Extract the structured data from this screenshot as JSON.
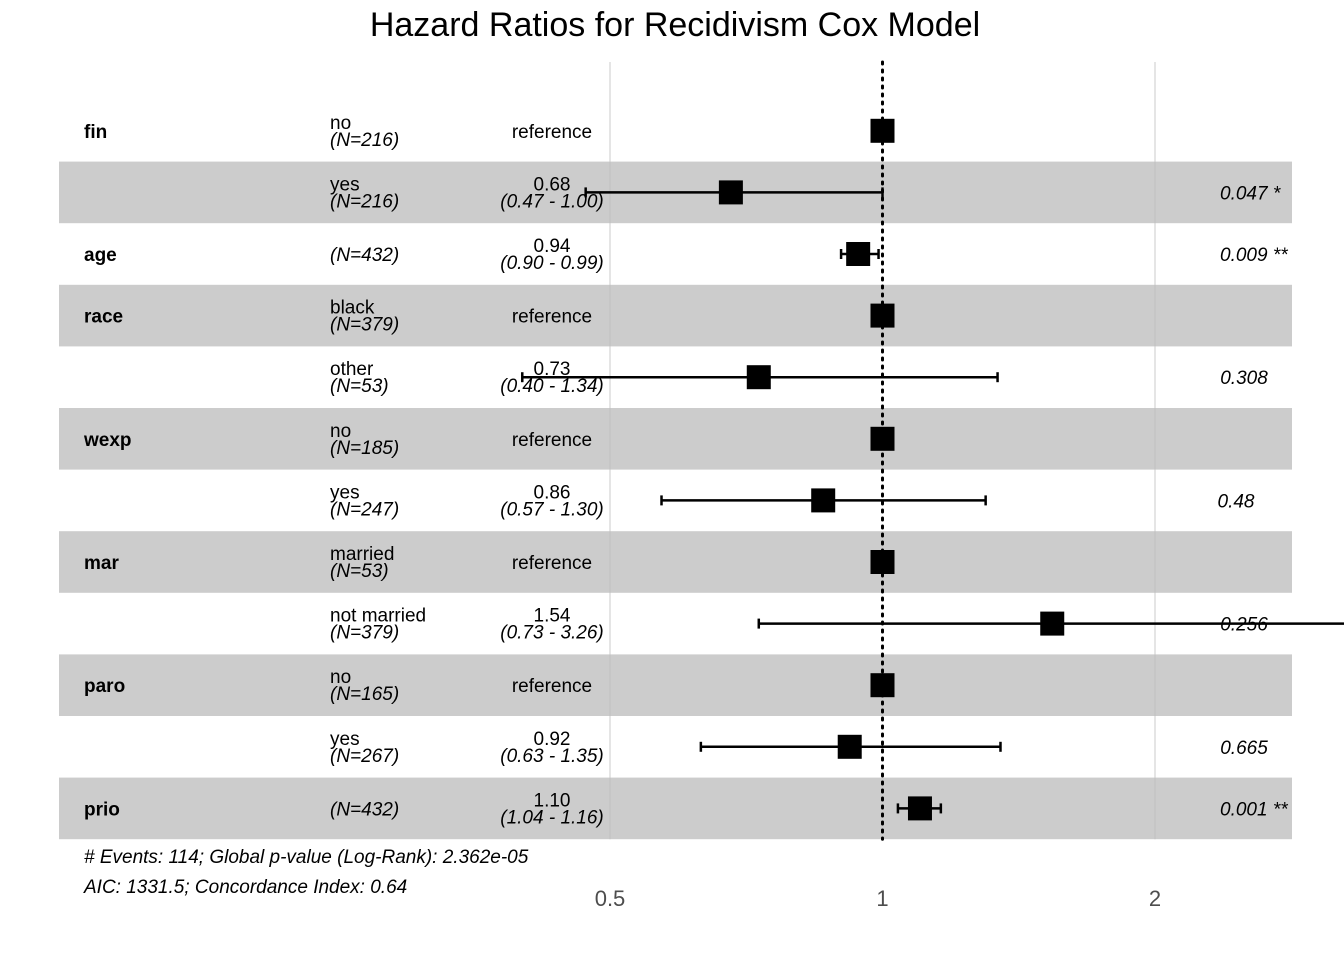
{
  "title": "Hazard Ratios for Recidivism Cox Model",
  "chart_data": {
    "type": "forest",
    "title": "Hazard Ratios for Recidivism Cox Model",
    "x_scale": "log",
    "x_ticks": [
      0.5,
      1,
      2
    ],
    "x_tick_labels": [
      "0.5",
      "1",
      "2"
    ],
    "reference_line": 1,
    "rows": [
      {
        "variable": "fin",
        "level": "no",
        "n": "(N=216)",
        "estimate_text": "reference",
        "ci_text": "",
        "hr": 1.0,
        "lo": null,
        "hi": null,
        "pvalue": ""
      },
      {
        "variable": "",
        "level": "yes",
        "n": "(N=216)",
        "estimate_text": "0.68",
        "ci_text": "(0.47 - 1.00)",
        "hr": 0.68,
        "lo": 0.47,
        "hi": 1.0,
        "pvalue": "0.047 *"
      },
      {
        "variable": "age",
        "level": "",
        "n": "(N=432)",
        "estimate_text": "0.94",
        "ci_text": "(0.90 - 0.99)",
        "hr": 0.94,
        "lo": 0.9,
        "hi": 0.99,
        "pvalue": "0.009 **"
      },
      {
        "variable": "race",
        "level": "black",
        "n": "(N=379)",
        "estimate_text": "reference",
        "ci_text": "",
        "hr": 1.0,
        "lo": null,
        "hi": null,
        "pvalue": ""
      },
      {
        "variable": "",
        "level": "other",
        "n": "(N=53)",
        "estimate_text": "0.73",
        "ci_text": "(0.40 - 1.34)",
        "hr": 0.73,
        "lo": 0.4,
        "hi": 1.34,
        "pvalue": "0.308"
      },
      {
        "variable": "wexp",
        "level": "no",
        "n": "(N=185)",
        "estimate_text": "reference",
        "ci_text": "",
        "hr": 1.0,
        "lo": null,
        "hi": null,
        "pvalue": ""
      },
      {
        "variable": "",
        "level": "yes",
        "n": "(N=247)",
        "estimate_text": "0.86",
        "ci_text": "(0.57 - 1.30)",
        "hr": 0.86,
        "lo": 0.57,
        "hi": 1.3,
        "pvalue": "0.48"
      },
      {
        "variable": "mar",
        "level": "married",
        "n": "(N=53)",
        "estimate_text": "reference",
        "ci_text": "",
        "hr": 1.0,
        "lo": null,
        "hi": null,
        "pvalue": ""
      },
      {
        "variable": "",
        "level": "not married",
        "n": "(N=379)",
        "estimate_text": "1.54",
        "ci_text": "(0.73 - 3.26)",
        "hr": 1.54,
        "lo": 0.73,
        "hi": 3.26,
        "pvalue": "0.256"
      },
      {
        "variable": "paro",
        "level": "no",
        "n": "(N=165)",
        "estimate_text": "reference",
        "ci_text": "",
        "hr": 1.0,
        "lo": null,
        "hi": null,
        "pvalue": ""
      },
      {
        "variable": "",
        "level": "yes",
        "n": "(N=267)",
        "estimate_text": "0.92",
        "ci_text": "(0.63 - 1.35)",
        "hr": 0.92,
        "lo": 0.63,
        "hi": 1.35,
        "pvalue": "0.665"
      },
      {
        "variable": "prio",
        "level": "",
        "n": "(N=432)",
        "estimate_text": "1.10",
        "ci_text": "(1.04 - 1.16)",
        "hr": 1.1,
        "lo": 1.04,
        "hi": 1.16,
        "pvalue": "0.001 **"
      }
    ],
    "footnotes": [
      "# Events: 114; Global p-value (Log-Rank): 2.362e-05",
      "AIC: 1331.5; Concordance Index: 0.64"
    ],
    "colors": {
      "stripe": "#cccccc",
      "marker": "#000000",
      "gridline": "#bebebe"
    }
  }
}
